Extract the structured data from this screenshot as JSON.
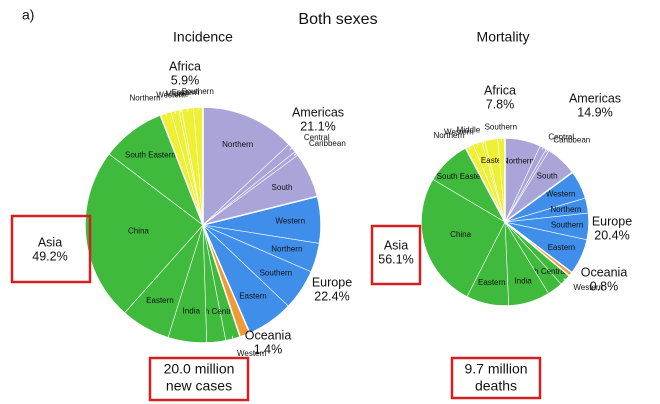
{
  "panel_label": "a)",
  "title": "Both sexes",
  "chart_data": [
    {
      "type": "pie",
      "title": "Incidence",
      "annotation": [
        "20.0 million",
        "new cases"
      ],
      "groups": [
        {
          "name": "Americas",
          "value": 21.1,
          "value_label": "21.1%",
          "color": "#aaa5d8",
          "labels": [
            "Northern",
            "Central",
            "Caribbean",
            "South"
          ],
          "values": [
            13.0,
            1.3,
            0.6,
            6.2
          ]
        },
        {
          "name": "Europe",
          "value": 22.4,
          "value_label": "22.4%",
          "color": "#3f8fea",
          "labels": [
            "Western",
            "Northern",
            "Southern",
            "Eastern"
          ],
          "values": [
            6.4,
            4.0,
            5.6,
            6.4
          ]
        },
        {
          "name": "Oceania",
          "value": 1.4,
          "value_label": "1.4%",
          "color": "#f09a35",
          "labels": [],
          "values": []
        },
        {
          "name": "Asia",
          "value": 49.2,
          "value_label": "49.2%",
          "color": "#3fba3c",
          "labels": [
            "Western",
            "South Central",
            "India",
            "Eastern",
            "China",
            "South Eastern"
          ],
          "values": [
            2.0,
            2.6,
            5.3,
            6.8,
            23.7,
            8.8
          ]
        },
        {
          "name": "Africa",
          "value": 5.9,
          "value_label": "5.9%",
          "color": "#eef034",
          "labels": [
            "Northern",
            "Western",
            "Middle",
            "Eastern",
            "Southern"
          ],
          "values": [
            1.5,
            1.1,
            0.4,
            1.6,
            1.3
          ]
        }
      ]
    },
    {
      "type": "pie",
      "title": "Mortality",
      "annotation": [
        "9.7 million",
        "deaths"
      ],
      "groups": [
        {
          "name": "Americas",
          "value": 14.9,
          "value_label": "14.9%",
          "color": "#aaa5d8",
          "labels": [
            "Northern",
            "Central",
            "Caribbean",
            "South"
          ],
          "values": [
            6.9,
            1.3,
            0.6,
            6.1
          ]
        },
        {
          "name": "Europe",
          "value": 20.4,
          "value_label": "20.4%",
          "color": "#3f8fea",
          "labels": [
            "Western",
            "Northern",
            "Southern",
            "Eastern"
          ],
          "values": [
            5.5,
            2.9,
            5.1,
            6.9
          ]
        },
        {
          "name": "Oceania",
          "value": 0.8,
          "value_label": "0.8%",
          "color": "#f09a35",
          "labels": [],
          "values": []
        },
        {
          "name": "Asia",
          "value": 56.1,
          "value_label": "56.1%",
          "color": "#3fba3c",
          "labels": [
            "Western",
            "South Central",
            "India",
            "Eastern",
            "China",
            "South Eastern"
          ],
          "values": [
            2.2,
            3.0,
            8.0,
            8.2,
            26.0,
            8.7
          ]
        },
        {
          "name": "Africa",
          "value": 7.8,
          "value_label": "7.8%",
          "color": "#eef034",
          "labels": [
            "Northern",
            "Western",
            "Middle",
            "Eastern",
            "Southern"
          ],
          "values": [
            1.6,
            1.7,
            0.6,
            2.5,
            1.4
          ]
        }
      ]
    }
  ]
}
